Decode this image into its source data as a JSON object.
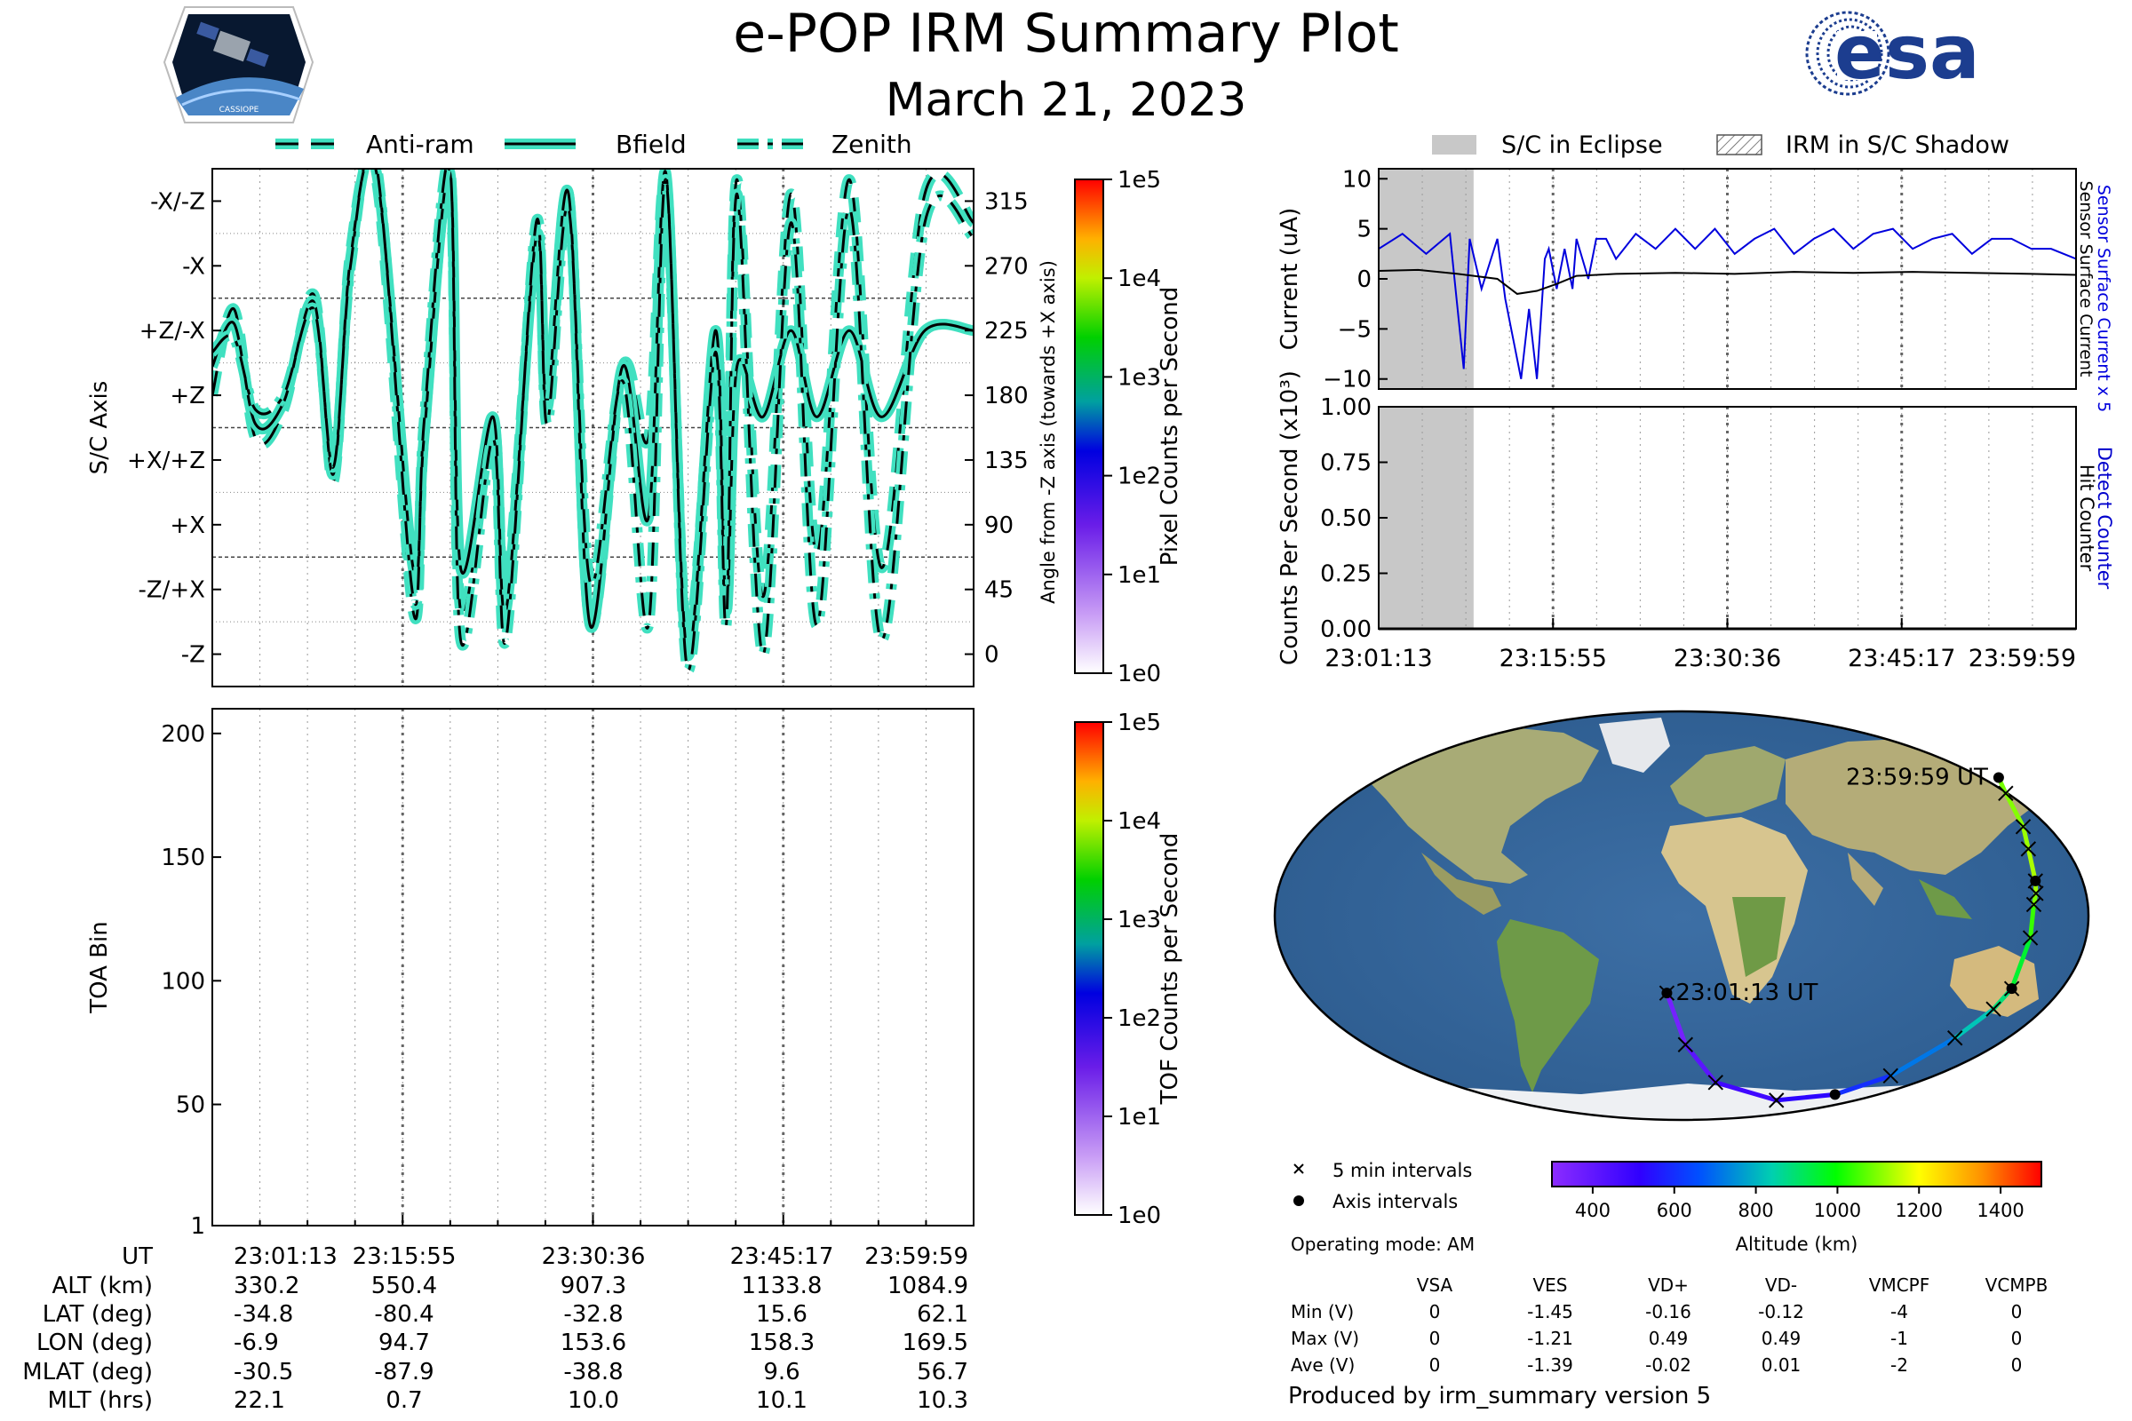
{
  "header": {
    "title": "e-POP IRM Summary Plot",
    "date": "March 21, 2023",
    "mission_logo_text": "CASSIOPE",
    "agency_logo_text": "esa"
  },
  "colors": {
    "trace_fill": "#40e0c0",
    "trace_core": "#000000",
    "eclipse_shade": "#c8c8c8",
    "sensor_current": "#0000dd",
    "hit_counter": "#000000",
    "detect_counter": "#0000cc"
  },
  "chart_data": [
    {
      "id": "angle_panel",
      "type": "line",
      "legend": [
        "Anti-ram",
        "Bfield",
        "Zenith"
      ],
      "ylabel_left": "S/C Axis",
      "ylabel_right": "Angle from -Z axis (towards +X axis)",
      "y_ticks_left": [
        "-X/-Z",
        "-X",
        "+Z/-X",
        "+Z",
        "+X/+Z",
        "+X",
        "-Z/+X",
        "-Z"
      ],
      "y_ticks_left_values": [
        315,
        270,
        225,
        180,
        135,
        90,
        45,
        0
      ],
      "y_ticks_right": [
        "315",
        "270",
        "225",
        "180",
        "135",
        "90",
        "45",
        "0"
      ],
      "ylim": [
        -22.5,
        337.5
      ],
      "xlim": [
        0,
        3526
      ],
      "x_tick_seconds": [
        0,
        882,
        1763,
        2644,
        3526
      ],
      "series": [
        {
          "name": "Anti-ram",
          "style": "dashed",
          "x": [
            0,
            100,
            200,
            330,
            470,
            560,
            640,
            760,
            930,
            980,
            1100,
            1150,
            1300,
            1360,
            1500,
            1550,
            1650,
            1750,
            1900,
            2020,
            2100,
            2200,
            2330,
            2380,
            2430,
            2550,
            2680,
            2800,
            2950,
            3100,
            3300,
            3526
          ],
          "y": [
            180,
            240,
            150,
            170,
            250,
            120,
            280,
            330,
            30,
            150,
            330,
            30,
            160,
            40,
            290,
            170,
            320,
            20,
            200,
            150,
            330,
            10,
            220,
            50,
            330,
            40,
            320,
            70,
            330,
            60,
            320,
            300
          ]
        },
        {
          "name": "Bfield",
          "style": "solid",
          "x": [
            0,
            100,
            200,
            330,
            470,
            560,
            640,
            760,
            930,
            980,
            1100,
            1150,
            1300,
            1360,
            1500,
            1550,
            1650,
            1750,
            1900,
            2020,
            2100,
            2200,
            2330,
            2380,
            2430,
            2550,
            2680,
            2800,
            2950,
            3100,
            3300,
            3526
          ],
          "y": [
            200,
            230,
            160,
            175,
            245,
            125,
            275,
            335,
            60,
            150,
            335,
            60,
            165,
            30,
            290,
            175,
            320,
            20,
            200,
            95,
            335,
            0,
            225,
            30,
            200,
            165,
            225,
            165,
            225,
            165,
            225,
            225
          ]
        },
        {
          "name": "Zenith",
          "style": "dashdot",
          "x": [
            0,
            100,
            200,
            330,
            470,
            560,
            640,
            760,
            930,
            980,
            1100,
            1150,
            1300,
            1360,
            1500,
            1550,
            1650,
            1750,
            1900,
            2020,
            2100,
            2200,
            2330,
            2380,
            2430,
            2550,
            2680,
            2800,
            2950,
            3100,
            3300,
            3526
          ],
          "y": [
            210,
            220,
            170,
            180,
            240,
            130,
            270,
            340,
            40,
            160,
            340,
            10,
            150,
            10,
            300,
            160,
            310,
            50,
            190,
            20,
            330,
            -10,
            210,
            20,
            320,
            0,
            300,
            20,
            310,
            10,
            300,
            290
          ]
        }
      ],
      "colorbar": {
        "label": "Pixel Counts per Second",
        "ticks": [
          "1e5",
          "1e4",
          "1e3",
          "1e2",
          "1e1",
          "1e0"
        ]
      }
    },
    {
      "id": "toa_panel",
      "type": "heatmap",
      "ylabel": "TOA Bin",
      "y_ticks": [
        "200",
        "150",
        "100",
        "50",
        "1"
      ],
      "ylim": [
        1,
        210
      ],
      "values": [],
      "colorbar": {
        "label": "TOF Counts per Second",
        "ticks": [
          "1e5",
          "1e4",
          "1e3",
          "1e2",
          "1e1",
          "1e0"
        ]
      }
    },
    {
      "id": "current_panel",
      "type": "line",
      "legend": [
        "S/C in Eclipse",
        "IRM in S/C Shadow"
      ],
      "ylabel": "Current (uA)",
      "ylabel_right_blue": "Sensor Surface Current x 5",
      "ylabel_right_black": "Sensor Surface Current",
      "y_ticks": [
        "10",
        "5",
        "0",
        "−5",
        "−10"
      ],
      "ylim": [
        -11,
        11
      ],
      "eclipse_seconds": [
        0,
        480
      ],
      "series": [
        {
          "name": "Sensor Surface Current x 5",
          "x": [
            0,
            120,
            240,
            360,
            430,
            460,
            520,
            600,
            640,
            680,
            720,
            760,
            800,
            840,
            860,
            900,
            940,
            980,
            1000,
            1060,
            1100,
            1150,
            1200,
            1300,
            1400,
            1500,
            1600,
            1700,
            1800,
            1900,
            2000,
            2100,
            2200,
            2300,
            2400,
            2500,
            2600,
            2700,
            2800,
            2900,
            3000,
            3100,
            3200,
            3300,
            3400,
            3526
          ],
          "y": [
            3,
            4.5,
            2.5,
            4.5,
            -9,
            4,
            -1,
            4,
            -2,
            -6,
            -10,
            -3,
            -10,
            2,
            3,
            -1,
            3,
            -1,
            4,
            0,
            4,
            4,
            2,
            4.5,
            3,
            5,
            3,
            5,
            2.5,
            4,
            5,
            2.5,
            4,
            5,
            3,
            4.5,
            5,
            3,
            4,
            4.5,
            2.5,
            4,
            4,
            3,
            3,
            2
          ]
        },
        {
          "name": "Sensor Surface Current",
          "x": [
            0,
            200,
            400,
            600,
            700,
            800,
            900,
            1000,
            1200,
            1500,
            1800,
            2100,
            2400,
            2700,
            3000,
            3300,
            3526
          ],
          "y": [
            0.8,
            0.9,
            0.5,
            0,
            -1.5,
            -1.2,
            -0.5,
            0.3,
            0.5,
            0.6,
            0.5,
            0.7,
            0.6,
            0.7,
            0.6,
            0.5,
            0.4
          ]
        }
      ]
    },
    {
      "id": "counts_panel",
      "type": "line",
      "ylabel": "Counts Per Second (x10³)",
      "ylabel_right_blue": "Detect Counter",
      "ylabel_right_black": "Hit Counter",
      "y_ticks": [
        "1.00",
        "0.75",
        "0.50",
        "0.25",
        "0.00"
      ],
      "ylim": [
        0,
        1
      ],
      "x_ticks": [
        "23:01:13",
        "23:15:55",
        "23:30:36",
        "23:45:17",
        "23:59:59"
      ],
      "series": [
        {
          "name": "Detect Counter",
          "x": [
            0,
            3526
          ],
          "y": [
            0,
            0
          ]
        },
        {
          "name": "Hit Counter",
          "x": [
            0,
            3526
          ],
          "y": [
            0,
            0
          ]
        }
      ]
    }
  ],
  "x_axis": {
    "ticks": [
      "23:01:13",
      "23:15:55",
      "23:30:36",
      "23:45:17",
      "23:59:59"
    ]
  },
  "ephemeris": {
    "rows": [
      {
        "label": "UT",
        "values": [
          "23:01:13",
          "23:15:55",
          "23:30:36",
          "23:45:17",
          "23:59:59"
        ]
      },
      {
        "label": "ALT (km)",
        "values": [
          "330.2",
          "550.4",
          "907.3",
          "1133.8",
          "1084.9"
        ]
      },
      {
        "label": "LAT (deg)",
        "values": [
          "-34.8",
          "-80.4",
          "-32.8",
          "15.6",
          "62.1"
        ]
      },
      {
        "label": "LON (deg)",
        "values": [
          "-6.9",
          "94.7",
          "153.6",
          "158.3",
          "169.5"
        ]
      },
      {
        "label": "MLAT (deg)",
        "values": [
          "-30.5",
          "-87.9",
          "-38.8",
          "9.6",
          "56.7"
        ]
      },
      {
        "label": "MLT (hrs)",
        "values": [
          "22.1",
          "0.7",
          "10.0",
          "10.1",
          "10.3"
        ]
      }
    ]
  },
  "map": {
    "start_label": "23:01:13 UT",
    "end_label": "23:59:59 UT",
    "legend_5min": "5 min intervals",
    "legend_axis": "Axis intervals",
    "altitude_label": "Altitude (km)",
    "altitude_ticks": [
      "400",
      "600",
      "800",
      "1000",
      "1200",
      "1400"
    ],
    "altitude_range": [
      300,
      1500
    ],
    "track": {
      "lon": [
        -6.9,
        2,
        20,
        60,
        94.7,
        120,
        140,
        150,
        153.6,
        155,
        156,
        157.5,
        158.3,
        160,
        163,
        166,
        169.5
      ],
      "lat": [
        -34.8,
        -58,
        -75,
        -83,
        -80.4,
        -72,
        -55,
        -42,
        -32.8,
        -10,
        5,
        10,
        15.6,
        30,
        40,
        55,
        62.1
      ],
      "alt": [
        330,
        380,
        450,
        500,
        550,
        650,
        780,
        870,
        907,
        1000,
        1080,
        1110,
        1134,
        1130,
        1110,
        1095,
        1085
      ]
    }
  },
  "operating_mode": "Operating mode: AM",
  "voltage_table": {
    "columns": [
      "",
      "VSA",
      "VES",
      "VD+",
      "VD-",
      "VMCPF",
      "VCMPB"
    ],
    "rows": [
      {
        "label": "Min (V)",
        "values": [
          "0",
          "-1.45",
          "-0.16",
          "-0.12",
          "-4",
          "0"
        ]
      },
      {
        "label": "Max (V)",
        "values": [
          "0",
          "-1.21",
          "0.49",
          "0.49",
          "-1",
          "0"
        ]
      },
      {
        "label": "Ave (V)",
        "values": [
          "0",
          "-1.39",
          "-0.02",
          "0.01",
          "-2",
          "0"
        ]
      }
    ]
  },
  "footer": "Produced by irm_summary version 5"
}
